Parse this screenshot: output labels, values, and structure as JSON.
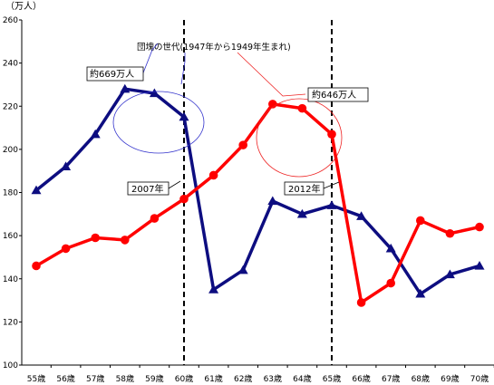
{
  "chart_data": {
    "type": "line",
    "y_unit": "（万人）",
    "ylim": [
      100,
      260
    ],
    "yticks": [
      100,
      120,
      140,
      160,
      180,
      200,
      220,
      240,
      260
    ],
    "categories": [
      "55歳",
      "56歳",
      "57歳",
      "58歳",
      "59歳",
      "60歳",
      "61歳",
      "62歳",
      "63歳",
      "64歳",
      "65歳",
      "66歳",
      "67歳",
      "68歳",
      "69歳",
      "70歳"
    ],
    "grid": false,
    "legend": "none",
    "series": [
      {
        "key": "blue",
        "marker": "triangle",
        "color": "#0d0d80",
        "values": [
          181,
          192,
          207,
          228,
          226,
          215,
          135,
          144,
          176,
          170,
          174,
          169,
          154,
          133,
          142,
          146
        ]
      },
      {
        "key": "red",
        "marker": "circle",
        "color": "#ff0000",
        "values": [
          146,
          154,
          159,
          158,
          168,
          177,
          188,
          202,
          221,
          219,
          207,
          129,
          138,
          167,
          161,
          164
        ]
      }
    ],
    "dashed_lines": [
      {
        "at_category": "60歳",
        "label": "2007年"
      },
      {
        "at_category": "65歳",
        "label": "2012年"
      }
    ],
    "annotations": {
      "baby_boom": "団塊の世代(1947年から1949年生まれ)",
      "blue_callout": "約669万人",
      "red_callout": "約646万人"
    }
  }
}
